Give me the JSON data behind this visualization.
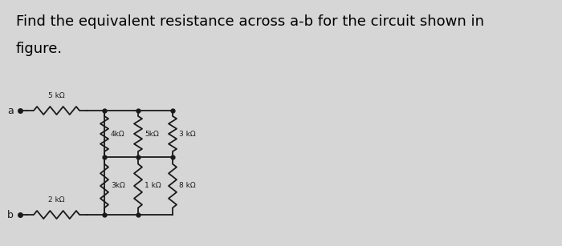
{
  "title_line1": "Find the equivalent resistance across a-b for the circuit shown in",
  "title_line2": "figure.",
  "title_fontsize": 13,
  "bg_color": "#d6d6d6",
  "wire_color": "#1a1a1a",
  "resistor_color": "#1a1a1a",
  "label_color": "#1a1a1a",
  "a_label": "a",
  "b_label": "b",
  "r_series_top": "5 kΩ",
  "r_series_bot": "2 kΩ",
  "r_top_row": [
    "4kΩ",
    "5kΩ",
    "3 kΩ"
  ],
  "r_bot_row": [
    "3kΩ",
    "1 kΩ",
    "8 kΩ"
  ]
}
